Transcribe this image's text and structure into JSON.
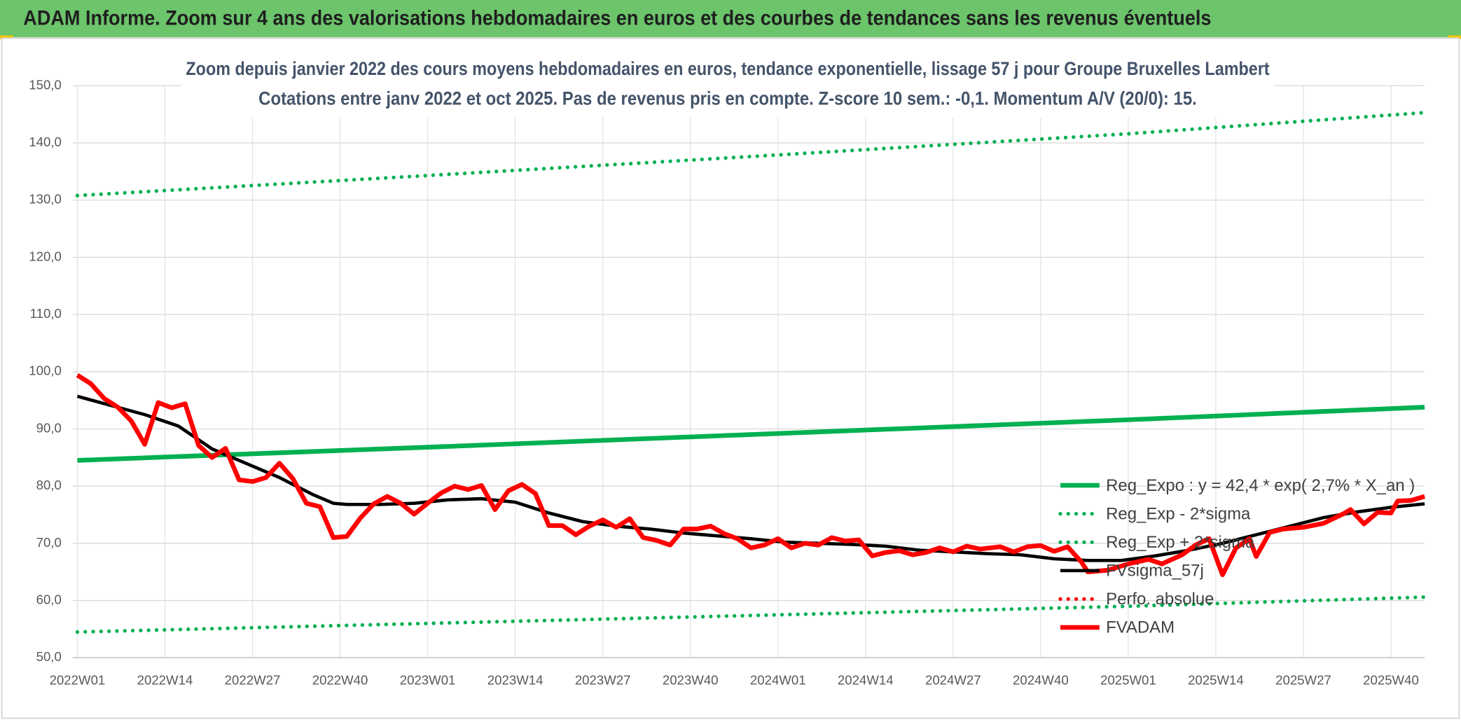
{
  "header": {
    "title": "ADAM Informe. Zoom sur 4 ans des valorisations hebdomadaires en euros et des courbes de tendances sans les revenus éventuels"
  },
  "chart_data": {
    "type": "line",
    "title": "Zoom depuis janvier 2022 des cours moyens hebdomadaires en euros, tendance exponentielle, lissage 57 j pour Groupe Bruxelles Lambert",
    "subtitle": "Cotations entre janv 2022 et oct 2025. Pas de revenus pris en compte. Z-score 10 sem.: -0,1. Momentum A/V (20/0): 15.",
    "xlim": [
      0,
      200
    ],
    "xticks": [
      {
        "value": 0,
        "label": "2022W01"
      },
      {
        "value": 13,
        "label": "2022W14"
      },
      {
        "value": 26,
        "label": "2022W27"
      },
      {
        "value": 39,
        "label": "2022W40"
      },
      {
        "value": 52,
        "label": "2023W01"
      },
      {
        "value": 65,
        "label": "2023W14"
      },
      {
        "value": 78,
        "label": "2023W27"
      },
      {
        "value": 91,
        "label": "2023W40"
      },
      {
        "value": 104,
        "label": "2024W01"
      },
      {
        "value": 117,
        "label": "2024W14"
      },
      {
        "value": 130,
        "label": "2024W27"
      },
      {
        "value": 143,
        "label": "2024W40"
      },
      {
        "value": 156,
        "label": "2025W01"
      },
      {
        "value": 169,
        "label": "2025W14"
      },
      {
        "value": 182,
        "label": "2025W27"
      },
      {
        "value": 195,
        "label": "2025W40"
      }
    ],
    "ylim": [
      50,
      150
    ],
    "yticks": [
      {
        "value": 50,
        "label": "50,0"
      },
      {
        "value": 60,
        "label": "60,0"
      },
      {
        "value": 70,
        "label": "70,0"
      },
      {
        "value": 80,
        "label": "80,0"
      },
      {
        "value": 90,
        "label": "90,0"
      },
      {
        "value": 100,
        "label": "100,0"
      },
      {
        "value": 110,
        "label": "110,0"
      },
      {
        "value": 120,
        "label": "120,0"
      },
      {
        "value": 130,
        "label": "130,0"
      },
      {
        "value": 140,
        "label": "140,0"
      },
      {
        "value": 150,
        "label": "150,0"
      }
    ],
    "grid": true,
    "legend": "right",
    "series": [
      {
        "name": "Reg_Expo : y = 42,4 * exp( 2,7% *  X_an )",
        "color": "#00b050",
        "style": "solid",
        "x": [
          0,
          52,
          104,
          156,
          200
        ],
        "values": [
          84.5,
          86.8,
          89.2,
          91.6,
          93.8
        ]
      },
      {
        "name": "Reg_Exp - 2*sigma",
        "color": "#00b050",
        "style": "dotted",
        "x": [
          0,
          52,
          104,
          156,
          200
        ],
        "values": [
          54.5,
          56.0,
          57.5,
          59.0,
          60.6
        ]
      },
      {
        "name": "Reg_Exp + 2*sigma",
        "color": "#00b050",
        "style": "dotted",
        "x": [
          0,
          52,
          104,
          156,
          200
        ],
        "values": [
          130.8,
          134.3,
          137.9,
          141.6,
          145.3
        ]
      },
      {
        "name": "FVsigma_57j",
        "color": "#000000",
        "style": "solid",
        "x": [
          0,
          10,
          15,
          20,
          25,
          30,
          35,
          38,
          40,
          45,
          50,
          55,
          60,
          65,
          70,
          75,
          80,
          85,
          90,
          95,
          100,
          105,
          110,
          115,
          120,
          125,
          130,
          135,
          140,
          145,
          150,
          155,
          160,
          165,
          170,
          175,
          180,
          185,
          190,
          195,
          200
        ],
        "values": [
          95.7,
          92.5,
          90.5,
          86.5,
          84.0,
          81.5,
          78.5,
          77.0,
          76.8,
          76.8,
          77.0,
          77.6,
          77.8,
          77.2,
          75.3,
          73.8,
          73.0,
          72.5,
          71.8,
          71.3,
          70.8,
          70.2,
          70.0,
          69.8,
          69.5,
          68.8,
          68.5,
          68.2,
          68.0,
          67.3,
          67.0,
          67.0,
          67.8,
          68.8,
          70.0,
          71.5,
          73.0,
          74.5,
          75.5,
          76.3,
          76.9
        ]
      },
      {
        "name": "Perfo. absolue",
        "color": "#ff0000",
        "style": "dotted",
        "x": [],
        "values": []
      },
      {
        "name": "FVADAM",
        "color": "#ff0000",
        "style": "solid",
        "x": [
          0,
          2,
          4,
          6,
          8,
          10,
          12,
          14,
          16,
          18,
          20,
          22,
          24,
          26,
          28,
          30,
          32,
          34,
          36,
          38,
          40,
          42,
          44,
          46,
          48,
          50,
          52,
          54,
          56,
          58,
          60,
          62,
          64,
          66,
          68,
          70,
          72,
          74,
          76,
          78,
          80,
          82,
          84,
          86,
          88,
          90,
          92,
          94,
          96,
          98,
          100,
          102,
          104,
          106,
          108,
          110,
          112,
          114,
          116,
          118,
          120,
          122,
          124,
          126,
          128,
          130,
          132,
          134,
          137,
          139,
          141,
          143,
          145,
          147,
          149,
          150,
          153,
          156,
          159,
          161,
          164,
          166,
          168,
          170,
          172,
          174,
          175,
          177,
          179,
          182,
          185,
          188,
          189,
          191,
          193,
          195,
          196,
          198,
          200
        ],
        "values": [
          99.4,
          97.9,
          95.3,
          93.8,
          91.4,
          87.3,
          94.6,
          93.7,
          94.4,
          87.1,
          85.0,
          86.6,
          81.1,
          80.8,
          81.5,
          84.0,
          81.3,
          77.0,
          76.4,
          71.0,
          71.2,
          74.4,
          76.9,
          78.2,
          77.0,
          75.1,
          77.0,
          78.8,
          80.0,
          79.4,
          80.1,
          75.9,
          79.2,
          80.3,
          78.7,
          73.1,
          73.1,
          71.5,
          73.0,
          74.1,
          72.8,
          74.3,
          71.0,
          70.5,
          69.7,
          72.5,
          72.5,
          73.0,
          71.7,
          70.8,
          69.2,
          69.7,
          70.8,
          69.2,
          70.0,
          69.7,
          71.0,
          70.4,
          70.6,
          67.8,
          68.4,
          68.7,
          68.0,
          68.4,
          69.2,
          68.5,
          69.5,
          69.0,
          69.4,
          68.5,
          69.4,
          69.6,
          68.6,
          69.4,
          66.8,
          65.0,
          65.3,
          66.4,
          67.2,
          66.4,
          68.0,
          69.7,
          70.8,
          64.5,
          69.2,
          70.8,
          67.7,
          71.9,
          72.5,
          72.8,
          73.5,
          75.2,
          75.9,
          73.4,
          75.4,
          75.3,
          77.4,
          77.5,
          78.2
        ]
      }
    ]
  }
}
